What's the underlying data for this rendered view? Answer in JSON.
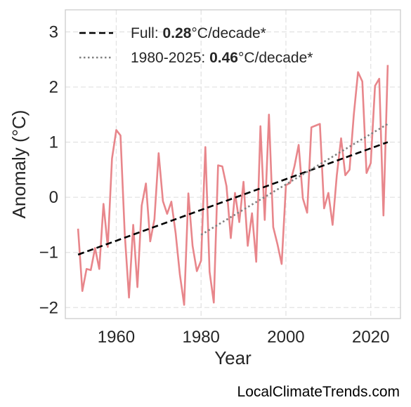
{
  "chart_data": {
    "type": "line",
    "title": "",
    "xlabel": "Year",
    "ylabel": "Anomaly (°C)",
    "xlim": [
      1948,
      2027
    ],
    "ylim": [
      -2.2,
      3.4
    ],
    "xticks": [
      "1960",
      "1980",
      "2000",
      "2020"
    ],
    "yticks": [
      "−2",
      "−1",
      "0",
      "1",
      "2",
      "3"
    ],
    "grid": true,
    "legend_placement": "top-left",
    "series": [
      {
        "color": "#e8868b",
        "x": [
          1951,
          1952,
          1953,
          1954,
          1955,
          1956,
          1957,
          1958,
          1959,
          1960,
          1961,
          1962,
          1963,
          1964,
          1965,
          1966,
          1967,
          1968,
          1969,
          1970,
          1971,
          1972,
          1973,
          1974,
          1975,
          1976,
          1977,
          1978,
          1979,
          1980,
          1981,
          1982,
          1983,
          1984,
          1985,
          1986,
          1987,
          1988,
          1989,
          1990,
          1991,
          1992,
          1993,
          1994,
          1995,
          1996,
          1997,
          1998,
          1999,
          2000,
          2001,
          2002,
          2003,
          2004,
          2005,
          2006,
          2007,
          2008,
          2009,
          2010,
          2011,
          2012,
          2013,
          2014,
          2015,
          2016,
          2017,
          2018,
          2019,
          2020,
          2021,
          2022,
          2023,
          2024
        ],
        "values": [
          -0.57,
          -1.7,
          -1.3,
          -1.32,
          -0.92,
          -1.3,
          -0.12,
          -0.9,
          0.7,
          1.22,
          1.12,
          -0.65,
          -1.82,
          -0.5,
          -1.63,
          -0.15,
          0.25,
          -0.8,
          -0.4,
          0.8,
          -0.07,
          -0.3,
          -0.08,
          -0.65,
          -1.4,
          -1.95,
          0.07,
          -0.88,
          -1.34,
          -1.15,
          0.91,
          -1.35,
          -1.91,
          0.58,
          0.56,
          0.2,
          -0.74,
          0.08,
          -0.45,
          0.28,
          -0.88,
          -0.29,
          -1.17,
          1.29,
          -0.41,
          1.5,
          -0.54,
          -0.85,
          -1.21,
          0.22,
          0.26,
          0.56,
          0.95,
          -0.02,
          -0.28,
          1.27,
          1.3,
          1.33,
          -0.2,
          0.08,
          -0.5,
          0.4,
          1.07,
          0.4,
          0.5,
          1.5,
          2.27,
          2.1,
          0.44,
          0.62,
          2.02,
          2.15,
          -0.33,
          2.4
        ]
      }
    ],
    "trends": [
      {
        "label": "Full:",
        "rate": "0.28",
        "unit": "°C/decade*",
        "style": "dashed",
        "color": "#000000",
        "x": [
          1951,
          2024
        ],
        "values": [
          -1.04,
          1.0
        ]
      },
      {
        "label": "1980-2025:",
        "rate": "0.46",
        "unit": "°C/decade*",
        "style": "dotted",
        "color": "#808080",
        "x": [
          1980,
          2024
        ],
        "values": [
          -0.68,
          1.33
        ]
      }
    ]
  },
  "credit": "LocalClimateTrends.com"
}
